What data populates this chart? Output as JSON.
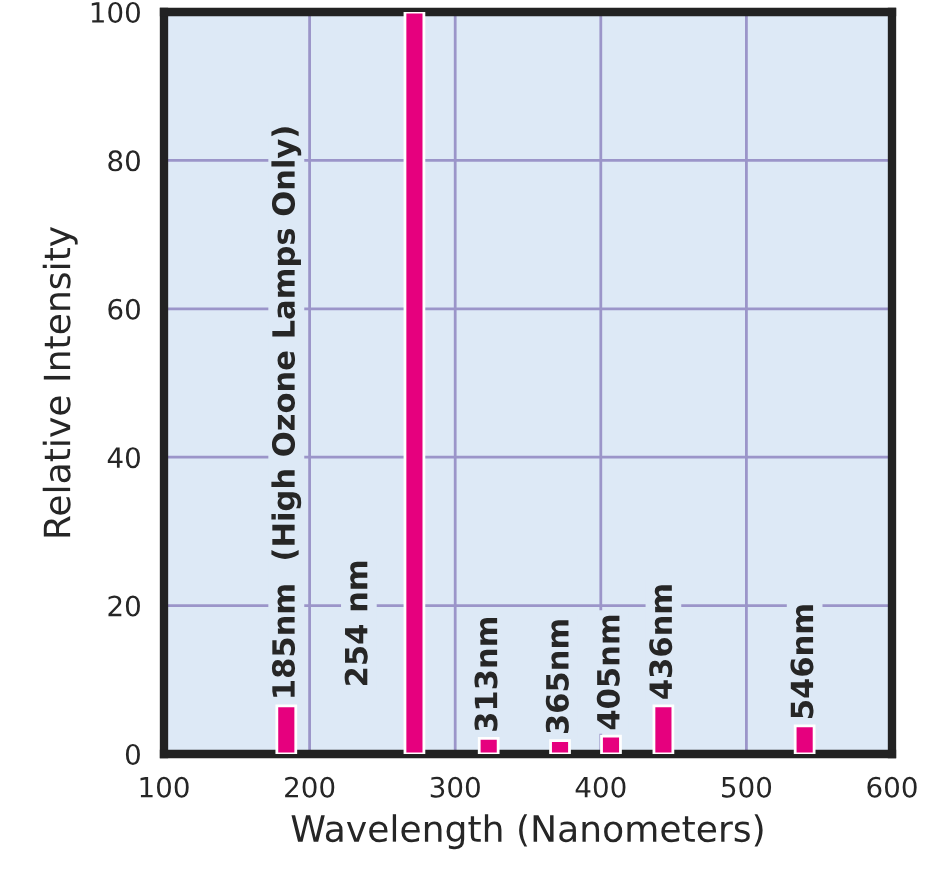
{
  "chart_data": {
    "type": "bar",
    "xlabel": "Wavelength (Nanometers)",
    "ylabel": "Relative Intensity",
    "x": [
      184,
      272,
      323,
      372,
      407,
      443,
      540
    ],
    "values": [
      6.5,
      100,
      2.1,
      1.8,
      2.4,
      6.5,
      3.8
    ],
    "color": "#e6007e",
    "xlim": [
      100,
      600
    ],
    "xticks": [
      100,
      200,
      300,
      400,
      500,
      600
    ],
    "ylim": [
      0,
      100
    ],
    "yticks": [
      0,
      20,
      40,
      60,
      80,
      100
    ],
    "grid": true,
    "annotations": [
      "185nm  (High Ozone Lamps Only)",
      "254 nm",
      "313nm",
      "365nm",
      "405nm",
      "436nm",
      "546nm"
    ]
  }
}
